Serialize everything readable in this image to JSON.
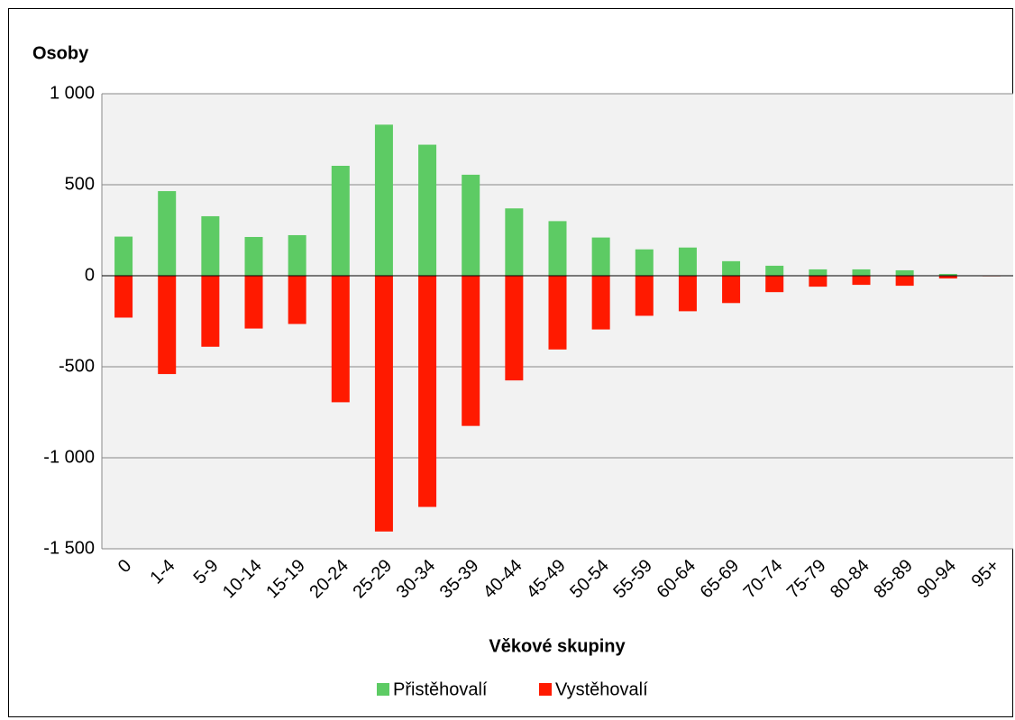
{
  "chart_data": {
    "type": "bar",
    "y_axis_title": "Osoby",
    "x_axis_title": "Věkové skupiny",
    "categories": [
      "0",
      "1-4",
      "5-9",
      "10-14",
      "15-19",
      "20-24",
      "25-29",
      "30-34",
      "35-39",
      "40-44",
      "45-49",
      "50-54",
      "55-59",
      "60-64",
      "65-69",
      "70-74",
      "75-79",
      "80-84",
      "85-89",
      "90-94",
      "95+"
    ],
    "series": [
      {
        "name": "Přistěhovalí",
        "color": "#5dcb64",
        "values": [
          215,
          465,
          327,
          213,
          223,
          604,
          830,
          720,
          555,
          370,
          300,
          210,
          145,
          155,
          80,
          55,
          35,
          35,
          30,
          10,
          2
        ]
      },
      {
        "name": "Vystěhovalí",
        "color": "#ff1a00",
        "values": [
          -230,
          -540,
          -390,
          -290,
          -265,
          -695,
          -1405,
          -1270,
          -825,
          -575,
          -405,
          -295,
          -220,
          -195,
          -150,
          -90,
          -60,
          -50,
          -55,
          -15,
          -3
        ]
      }
    ],
    "ylim": [
      -1500,
      1000
    ],
    "yticks": [
      {
        "value": 1000,
        "label": "1 000"
      },
      500,
      0,
      -500,
      {
        "value": -1000,
        "label": "-1 000"
      },
      {
        "value": -1500,
        "label": "-1 500"
      }
    ],
    "grid": true,
    "legend": "bottom"
  }
}
